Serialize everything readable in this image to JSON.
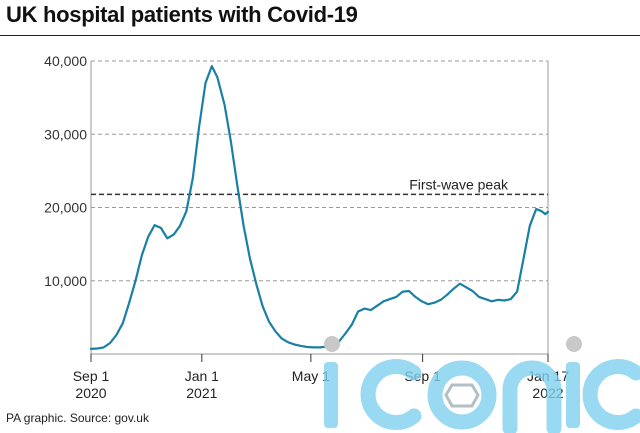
{
  "title": "UK hospital patients with Covid-19",
  "source": "PA graphic. Source: gov.uk",
  "watermark": "iconic",
  "colors": {
    "line": "#1a7fa6",
    "grid": "#9a9a9a",
    "peak": "#333333",
    "watermark": "#7fd1ef"
  },
  "chart_data": {
    "type": "line",
    "x_tick_labels": [
      {
        "x": "2020-09-01",
        "line1": "Sep 1",
        "line2": "2020"
      },
      {
        "x": "2021-01-01",
        "line1": "Jan 1",
        "line2": "2021"
      },
      {
        "x": "2021-05-01",
        "line1": "May 1",
        "line2": ""
      },
      {
        "x": "2021-09-01",
        "line1": "Sep 1",
        "line2": ""
      },
      {
        "x": "2022-01-17",
        "line1": "Jan 17",
        "line2": "2022"
      }
    ],
    "y_ticks": [
      0,
      10000,
      20000,
      30000,
      40000
    ],
    "y_tick_labels": [
      "",
      "10,000",
      "20,000",
      "30,000",
      "40,000"
    ],
    "ylim": [
      0,
      40000
    ],
    "xlim": [
      "2020-09-01",
      "2022-01-17"
    ],
    "grid": true,
    "reference_line": {
      "value": 21800,
      "label": "First-wave peak"
    },
    "series": [
      {
        "x": [
          "2020-09-01",
          "2020-09-08",
          "2020-09-15",
          "2020-09-22",
          "2020-09-29",
          "2020-10-06",
          "2020-10-13",
          "2020-10-20",
          "2020-10-27",
          "2020-11-03",
          "2020-11-10",
          "2020-11-17",
          "2020-11-24",
          "2020-12-01",
          "2020-12-08",
          "2020-12-15",
          "2020-12-22",
          "2020-12-29",
          "2021-01-05",
          "2021-01-12",
          "2021-01-18",
          "2021-01-26",
          "2021-02-02",
          "2021-02-09",
          "2021-02-16",
          "2021-02-23",
          "2021-03-02",
          "2021-03-09",
          "2021-03-16",
          "2021-03-23",
          "2021-03-30",
          "2021-04-06",
          "2021-04-13",
          "2021-04-20",
          "2021-04-27",
          "2021-05-04",
          "2021-05-11",
          "2021-05-18",
          "2021-05-25",
          "2021-06-01",
          "2021-06-08",
          "2021-06-15",
          "2021-06-22",
          "2021-06-29",
          "2021-07-06",
          "2021-07-13",
          "2021-07-20",
          "2021-07-27",
          "2021-08-03",
          "2021-08-10",
          "2021-08-17",
          "2021-08-24",
          "2021-08-31",
          "2021-09-07",
          "2021-09-14",
          "2021-09-21",
          "2021-09-28",
          "2021-10-05",
          "2021-10-12",
          "2021-10-19",
          "2021-10-26",
          "2021-11-02",
          "2021-11-09",
          "2021-11-16",
          "2021-11-23",
          "2021-11-30",
          "2021-12-07",
          "2021-12-14",
          "2021-12-21",
          "2021-12-28",
          "2022-01-04",
          "2022-01-10",
          "2022-01-14",
          "2022-01-17"
        ],
        "values": [
          700,
          750,
          900,
          1500,
          2600,
          4200,
          7000,
          10000,
          13500,
          16000,
          17600,
          17200,
          15800,
          16300,
          17500,
          19500,
          24000,
          31000,
          37000,
          39300,
          37800,
          34000,
          29000,
          23000,
          17500,
          13000,
          9500,
          6500,
          4400,
          3100,
          2100,
          1600,
          1300,
          1100,
          950,
          900,
          900,
          1000,
          1200,
          1700,
          2800,
          4000,
          5800,
          6200,
          6000,
          6600,
          7200,
          7500,
          7800,
          8500,
          8600,
          7800,
          7200,
          6800,
          7000,
          7400,
          8100,
          8900,
          9600,
          9100,
          8600,
          7800,
          7500,
          7200,
          7400,
          7300,
          7500,
          8500,
          13000,
          17500,
          19800,
          19500,
          19100,
          19400
        ]
      }
    ]
  }
}
